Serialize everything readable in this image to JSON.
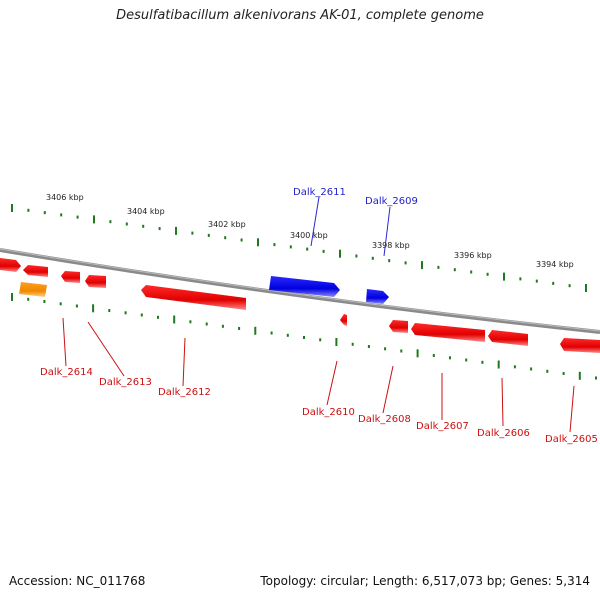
{
  "title": "Desulfatibacillum alkenivorans AK-01, complete genome",
  "footer": {
    "accession": "Accession: NC_011768",
    "topology": "Topology: circular; Length: 6,517,073 bp; Genes: 5,314"
  },
  "colors": {
    "axis": "#888888",
    "ticks": "#1f7a1f",
    "forward_gene": "#1010ee",
    "reverse_gene": "#ee0000",
    "other_gene": "#ee8800"
  },
  "scale_labels": [
    "3406 kbp",
    "3404 kbp",
    "3402 kbp",
    "3400 kbp",
    "3398 kbp",
    "3396 kbp",
    "3394 kbp"
  ],
  "gene_labels": {
    "top": [
      "Dalk_2611",
      "Dalk_2609"
    ],
    "bottom": [
      "Dalk_2614",
      "Dalk_2613",
      "Dalk_2612",
      "Dalk_2610",
      "Dalk_2608",
      "Dalk_2607",
      "Dalk_2606",
      "Dalk_2605"
    ]
  }
}
